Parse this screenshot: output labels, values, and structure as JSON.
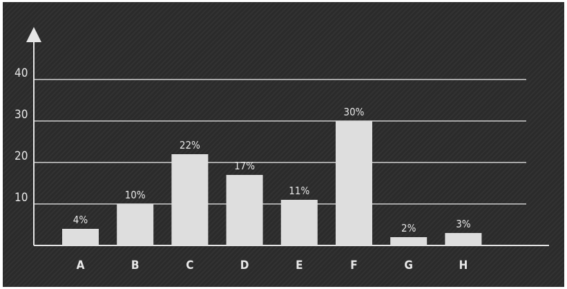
{
  "chart_data": {
    "type": "bar",
    "categories": [
      "A",
      "B",
      "C",
      "D",
      "E",
      "F",
      "G",
      "H"
    ],
    "values": [
      4,
      10,
      22,
      17,
      11,
      30,
      2,
      3
    ],
    "data_labels": [
      "4%",
      "10%",
      "22%",
      "17%",
      "11%",
      "30%",
      "2%",
      "3%"
    ],
    "yticks": [
      10,
      20,
      30,
      40
    ],
    "ylim": [
      0,
      40
    ],
    "grid": true,
    "legend": "none",
    "colors": {
      "background": "#2b2b2b",
      "bar": "#dedede",
      "axis": "#e6e6e6",
      "grid": "#cfcfcf",
      "text": "#e8e8e8"
    }
  }
}
